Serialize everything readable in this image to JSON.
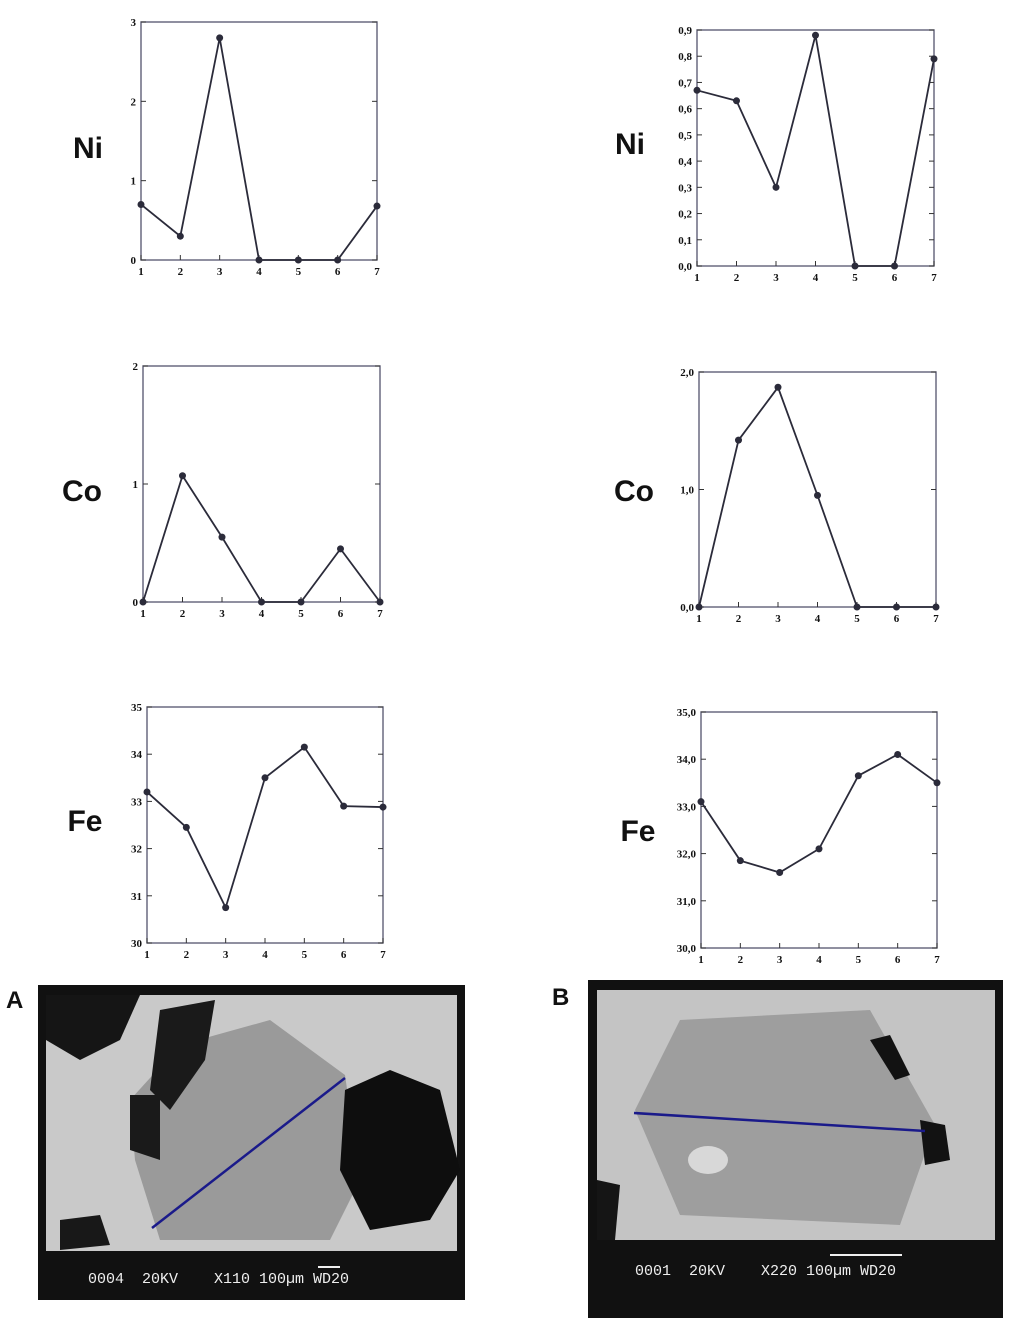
{
  "chart_data": [
    {
      "type": "line",
      "ylabel": "Ni",
      "x": [
        1,
        2,
        3,
        4,
        5,
        6,
        7
      ],
      "xlim": [
        1,
        7
      ],
      "xticks": [
        1,
        2,
        3,
        4,
        5,
        6,
        7
      ],
      "ylim": [
        0,
        3
      ],
      "yticks": [
        0,
        1,
        2,
        3
      ],
      "series": [
        {
          "color": "#2b2b3a",
          "values": [
            0.7,
            0.3,
            2.8,
            0,
            0,
            0,
            0.68
          ]
        }
      ]
    },
    {
      "type": "line",
      "ylabel": "Ni",
      "x": [
        1,
        2,
        3,
        4,
        5,
        6,
        7
      ],
      "xlim": [
        1,
        7
      ],
      "xticks": [
        1,
        2,
        3,
        4,
        5,
        6,
        7
      ],
      "ylim": [
        0,
        0.9
      ],
      "yticks": [
        {
          "value": 0,
          "label": "0,0"
        },
        {
          "value": 0.1,
          "label": "0,1"
        },
        {
          "value": 0.2,
          "label": "0,2"
        },
        {
          "value": 0.3,
          "label": "0,3"
        },
        {
          "value": 0.4,
          "label": "0,4"
        },
        {
          "value": 0.5,
          "label": "0,5"
        },
        {
          "value": 0.6,
          "label": "0,6"
        },
        {
          "value": 0.7,
          "label": "0,7"
        },
        {
          "value": 0.8,
          "label": "0,8"
        },
        {
          "value": 0.9,
          "label": "0,9"
        }
      ],
      "series": [
        {
          "color": "#2b2b3a",
          "values": [
            0.67,
            0.63,
            0.3,
            0.88,
            0,
            0,
            0.79
          ]
        }
      ]
    },
    {
      "type": "line",
      "ylabel": "Co",
      "x": [
        1,
        2,
        3,
        4,
        5,
        6,
        7
      ],
      "xlim": [
        1,
        7
      ],
      "xticks": [
        1,
        2,
        3,
        4,
        5,
        6,
        7
      ],
      "ylim": [
        0,
        2
      ],
      "yticks": [
        0,
        1,
        2
      ],
      "series": [
        {
          "color": "#2b2b3a",
          "values": [
            0,
            1.07,
            0.55,
            0,
            0,
            0.45,
            0
          ]
        }
      ]
    },
    {
      "type": "line",
      "ylabel": "Co",
      "x": [
        1,
        2,
        3,
        4,
        5,
        6,
        7
      ],
      "xlim": [
        1,
        7
      ],
      "xticks": [
        1,
        2,
        3,
        4,
        5,
        6,
        7
      ],
      "ylim": [
        0,
        2
      ],
      "yticks": [
        {
          "value": 0,
          "label": "0,0"
        },
        {
          "value": 1,
          "label": "1,0"
        },
        {
          "value": 2,
          "label": "2,0"
        }
      ],
      "series": [
        {
          "color": "#2b2b3a",
          "values": [
            0,
            1.42,
            1.87,
            0.95,
            0,
            0,
            0
          ]
        }
      ]
    },
    {
      "type": "line",
      "ylabel": "Fe",
      "x": [
        1,
        2,
        3,
        4,
        5,
        6,
        7
      ],
      "xlim": [
        1,
        7
      ],
      "xticks": [
        1,
        2,
        3,
        4,
        5,
        6,
        7
      ],
      "ylim": [
        30,
        35
      ],
      "yticks": [
        30,
        31,
        32,
        33,
        34,
        35
      ],
      "series": [
        {
          "color": "#2b2b3a",
          "values": [
            33.2,
            32.45,
            30.75,
            33.5,
            34.15,
            32.9,
            32.88
          ]
        }
      ]
    },
    {
      "type": "line",
      "ylabel": "Fe",
      "x": [
        1,
        2,
        3,
        4,
        5,
        6,
        7
      ],
      "xlim": [
        1,
        7
      ],
      "xticks": [
        1,
        2,
        3,
        4,
        5,
        6,
        7
      ],
      "ylim": [
        30,
        35
      ],
      "yticks": [
        {
          "value": 30,
          "label": "30,0"
        },
        {
          "value": 31,
          "label": "31,0"
        },
        {
          "value": 32,
          "label": "32,0"
        },
        {
          "value": 33,
          "label": "33,0"
        },
        {
          "value": 34,
          "label": "34,0"
        },
        {
          "value": 35,
          "label": "35,0"
        }
      ],
      "series": [
        {
          "color": "#2b2b3a",
          "values": [
            33.1,
            31.85,
            31.6,
            32.1,
            33.65,
            34.1,
            33.5
          ]
        }
      ]
    }
  ],
  "panels": [
    {
      "label": "A",
      "caption": "0004  20KV    X110 100µm WD20"
    },
    {
      "label": "B",
      "caption": "0001  20KV    X220 100µm WD20"
    }
  ]
}
